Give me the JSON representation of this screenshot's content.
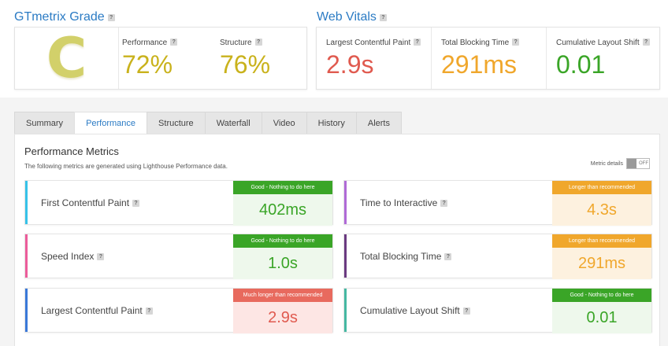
{
  "grade": {
    "title": "GTmetrix Grade",
    "letter": "C",
    "performance": {
      "label": "Performance",
      "value": "72%"
    },
    "structure": {
      "label": "Structure",
      "value": "76%"
    }
  },
  "vitals": {
    "title": "Web Vitals",
    "items": [
      {
        "label": "Largest Contentful Paint",
        "value": "2.9s",
        "color": "#e05a4f"
      },
      {
        "label": "Total Blocking Time",
        "value": "291ms",
        "color": "#f0a72c"
      },
      {
        "label": "Cumulative Layout Shift",
        "value": "0.01",
        "color": "#3aa527"
      }
    ]
  },
  "tabs": [
    "Summary",
    "Performance",
    "Structure",
    "Waterfall",
    "Video",
    "History",
    "Alerts"
  ],
  "active_tab": "Performance",
  "metrics_section": {
    "title": "Performance Metrics",
    "subtitle": "The following metrics are generated using Lighthouse Performance data.",
    "details_label": "Metric details",
    "toggle_state": "OFF"
  },
  "metrics": [
    {
      "name": "First Contentful Paint",
      "tag": "Good - Nothing to do here",
      "value": "402ms",
      "bar": "#36c2e8",
      "tag_color": "#3aa527",
      "val_bg": "#eef8ec",
      "val_color": "#3aa527"
    },
    {
      "name": "Time to Interactive",
      "tag": "Longer than recommended",
      "value": "4.3s",
      "bar": "#b06ad6",
      "tag_color": "#f0a72c",
      "val_bg": "#fdf1df",
      "val_color": "#f0a72c"
    },
    {
      "name": "Speed Index",
      "tag": "Good - Nothing to do here",
      "value": "1.0s",
      "bar": "#ec5c9a",
      "tag_color": "#3aa527",
      "val_bg": "#eef8ec",
      "val_color": "#3aa527"
    },
    {
      "name": "Total Blocking Time",
      "tag": "Longer than recommended",
      "value": "291ms",
      "bar": "#6a3a80",
      "tag_color": "#f0a72c",
      "val_bg": "#fdf1df",
      "val_color": "#f0a72c"
    },
    {
      "name": "Largest Contentful Paint",
      "tag": "Much longer than recommended",
      "value": "2.9s",
      "bar": "#3a78d8",
      "tag_color": "#e86a5e",
      "val_bg": "#fde6e4",
      "val_color": "#e05a4f"
    },
    {
      "name": "Cumulative Layout Shift",
      "tag": "Good - Nothing to do here",
      "value": "0.01",
      "bar": "#45b8a2",
      "tag_color": "#3aa527",
      "val_bg": "#eef8ec",
      "val_color": "#3aa527"
    }
  ],
  "help_icon_glyph": "?"
}
